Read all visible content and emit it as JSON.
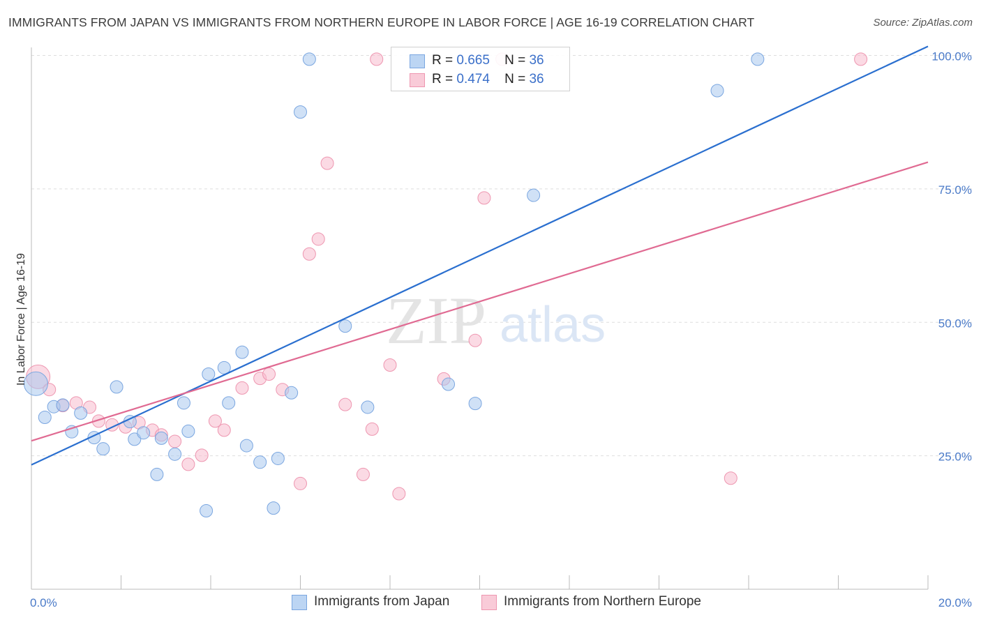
{
  "header": {
    "title": "IMMIGRANTS FROM JAPAN VS IMMIGRANTS FROM NORTHERN EUROPE IN LABOR FORCE | AGE 16-19 CORRELATION CHART",
    "source": "Source: ZipAtlas.com"
  },
  "watermark": {
    "zip": "ZIP",
    "atlas": "atlas"
  },
  "colors": {
    "japan_fill": "#a9c8ef",
    "japan_stroke": "#7aa6e0",
    "japan_line": "#2a6fcf",
    "neu_fill": "#f7bccd",
    "neu_stroke": "#ee96b0",
    "neu_line": "#e06a92",
    "tick_label": "#4a7ac8",
    "grid": "#dddddd"
  },
  "legend": {
    "r_label": "R =",
    "n_label": "N =",
    "items": [
      {
        "r": "0.665",
        "n": "36"
      },
      {
        "r": "0.474",
        "n": "36"
      }
    ]
  },
  "chart_data": {
    "type": "scatter",
    "xlabel": "",
    "ylabel": "In Labor Force | Age 16-19",
    "xlim": [
      0,
      20
    ],
    "ylim": [
      0,
      105
    ],
    "x_tick_labels": [
      {
        "value": 0,
        "label": "0.0%"
      },
      {
        "value": 20,
        "label": "20.0%"
      }
    ],
    "y_tick_labels": [
      {
        "value": 25,
        "label": "25.0%"
      },
      {
        "value": 50,
        "label": "50.0%"
      },
      {
        "value": 75,
        "label": "75.0%"
      },
      {
        "value": 100,
        "label": "100.0%"
      }
    ],
    "grid": {
      "horizontal": true,
      "vertical": false
    },
    "legend_position": "bottom",
    "series": [
      {
        "name": "Immigrants from Japan",
        "regression": {
          "x": [
            0,
            20
          ],
          "y": [
            23.3,
            101.7
          ]
        },
        "points": [
          {
            "x": 0.1,
            "y": 38.5,
            "big": true
          },
          {
            "x": 0.3,
            "y": 32.2
          },
          {
            "x": 0.5,
            "y": 34.2
          },
          {
            "x": 0.7,
            "y": 34.5
          },
          {
            "x": 0.9,
            "y": 29.5
          },
          {
            "x": 1.1,
            "y": 33.0
          },
          {
            "x": 1.4,
            "y": 28.4
          },
          {
            "x": 1.6,
            "y": 26.3
          },
          {
            "x": 1.9,
            "y": 37.9
          },
          {
            "x": 2.2,
            "y": 31.4
          },
          {
            "x": 2.3,
            "y": 28.1
          },
          {
            "x": 2.5,
            "y": 29.3
          },
          {
            "x": 2.8,
            "y": 21.5
          },
          {
            "x": 2.9,
            "y": 28.3
          },
          {
            "x": 3.2,
            "y": 25.3
          },
          {
            "x": 3.4,
            "y": 34.9
          },
          {
            "x": 3.5,
            "y": 29.6
          },
          {
            "x": 3.9,
            "y": 14.7
          },
          {
            "x": 3.95,
            "y": 40.3
          },
          {
            "x": 4.3,
            "y": 41.5
          },
          {
            "x": 4.4,
            "y": 34.9
          },
          {
            "x": 4.7,
            "y": 44.4
          },
          {
            "x": 4.8,
            "y": 26.9
          },
          {
            "x": 5.1,
            "y": 23.8
          },
          {
            "x": 5.4,
            "y": 15.2
          },
          {
            "x": 5.5,
            "y": 24.5
          },
          {
            "x": 5.8,
            "y": 36.8
          },
          {
            "x": 6.0,
            "y": 89.4
          },
          {
            "x": 6.2,
            "y": 99.3
          },
          {
            "x": 7.0,
            "y": 49.3
          },
          {
            "x": 7.5,
            "y": 34.1
          },
          {
            "x": 9.3,
            "y": 38.4
          },
          {
            "x": 9.9,
            "y": 34.8
          },
          {
            "x": 11.2,
            "y": 73.8
          },
          {
            "x": 15.3,
            "y": 93.4
          },
          {
            "x": 16.2,
            "y": 99.3
          }
        ]
      },
      {
        "name": "Immigrants from Northern Europe",
        "regression": {
          "x": [
            0,
            20
          ],
          "y": [
            27.8,
            80.0
          ]
        },
        "points": [
          {
            "x": 0.15,
            "y": 39.8,
            "big": true
          },
          {
            "x": 0.4,
            "y": 37.4
          },
          {
            "x": 0.7,
            "y": 34.4
          },
          {
            "x": 1.0,
            "y": 34.9
          },
          {
            "x": 1.3,
            "y": 34.1
          },
          {
            "x": 1.5,
            "y": 31.5
          },
          {
            "x": 1.8,
            "y": 30.8
          },
          {
            "x": 2.1,
            "y": 30.4
          },
          {
            "x": 2.4,
            "y": 31.2
          },
          {
            "x": 2.7,
            "y": 29.8
          },
          {
            "x": 2.9,
            "y": 28.9
          },
          {
            "x": 3.2,
            "y": 27.7
          },
          {
            "x": 3.5,
            "y": 23.4
          },
          {
            "x": 3.8,
            "y": 25.1
          },
          {
            "x": 4.1,
            "y": 31.5
          },
          {
            "x": 4.3,
            "y": 29.8
          },
          {
            "x": 4.7,
            "y": 37.7
          },
          {
            "x": 5.1,
            "y": 39.5
          },
          {
            "x": 5.3,
            "y": 40.3
          },
          {
            "x": 5.6,
            "y": 37.4
          },
          {
            "x": 6.0,
            "y": 19.8
          },
          {
            "x": 6.2,
            "y": 62.8
          },
          {
            "x": 6.4,
            "y": 65.6
          },
          {
            "x": 6.6,
            "y": 79.8
          },
          {
            "x": 7.0,
            "y": 34.6
          },
          {
            "x": 7.4,
            "y": 21.5
          },
          {
            "x": 7.6,
            "y": 30.0
          },
          {
            "x": 7.7,
            "y": 99.3
          },
          {
            "x": 8.0,
            "y": 42.0
          },
          {
            "x": 8.2,
            "y": 17.9
          },
          {
            "x": 9.2,
            "y": 39.4
          },
          {
            "x": 9.9,
            "y": 46.6
          },
          {
            "x": 10.1,
            "y": 73.3
          },
          {
            "x": 10.5,
            "y": 99.3
          },
          {
            "x": 15.6,
            "y": 20.8
          },
          {
            "x": 18.5,
            "y": 99.3
          }
        ]
      }
    ]
  }
}
